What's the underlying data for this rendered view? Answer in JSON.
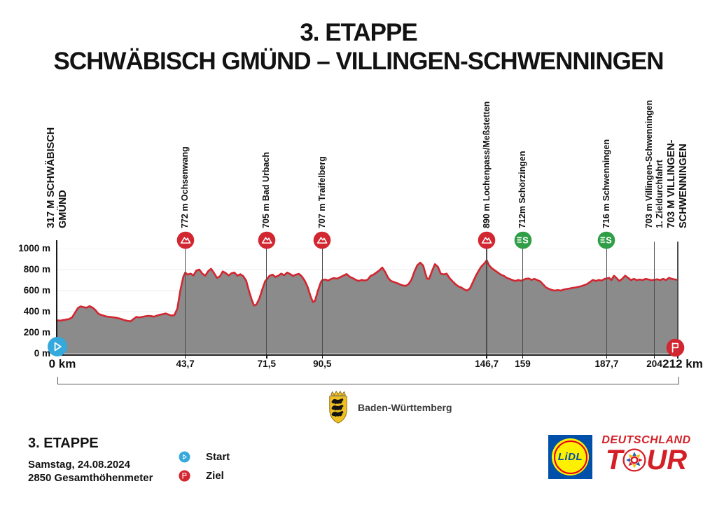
{
  "title": {
    "line1": "3. ETAPPE",
    "line2": "SCHWÄBISCH GMÜND – VILLINGEN-SCHWENNINGEN"
  },
  "chart_data": {
    "type": "area",
    "xlabel_unit": "km",
    "ylabel_unit": "m",
    "xlim": [
      0,
      212
    ],
    "ylim": [
      0,
      1000
    ],
    "grid": "horizontal-200m",
    "y_ticks": [
      {
        "m": 0,
        "label": "0 m"
      },
      {
        "m": 200,
        "label": "200 m"
      },
      {
        "m": 400,
        "label": "400 m"
      },
      {
        "m": 600,
        "label": "600 m"
      },
      {
        "m": 800,
        "label": "800 m"
      },
      {
        "m": 1000,
        "label": "1000 m"
      }
    ],
    "waypoints": [
      {
        "km": 0,
        "tick_label": "0 km",
        "tick_bold": true,
        "label_lines": [
          "317 M SCHWÄBISCH",
          "GMÜND"
        ],
        "label_bold": true,
        "marker": "start"
      },
      {
        "km": 43.7,
        "tick_label": "43,7",
        "tick_bold": false,
        "label_lines": [
          "772 m Ochsenwang"
        ],
        "label_bold": false,
        "marker": "climb"
      },
      {
        "km": 71.5,
        "tick_label": "71,5",
        "tick_bold": false,
        "label_lines": [
          "705 m Bad Urbach"
        ],
        "label_bold": false,
        "marker": "climb"
      },
      {
        "km": 90.5,
        "tick_label": "90,5",
        "tick_bold": false,
        "label_lines": [
          "707 m Traifelberg"
        ],
        "label_bold": false,
        "marker": "climb"
      },
      {
        "km": 146.7,
        "tick_label": "146,7",
        "tick_bold": false,
        "label_lines": [
          "890 m Lochenpass/Meßstetten"
        ],
        "label_bold": false,
        "marker": "climb"
      },
      {
        "km": 159,
        "tick_label": "159",
        "tick_bold": false,
        "label_lines": [
          "712m Schörzingen"
        ],
        "label_bold": false,
        "marker": "sprint"
      },
      {
        "km": 187.7,
        "tick_label": "187,7",
        "tick_bold": false,
        "label_lines": [
          "716 m Schwenningen"
        ],
        "label_bold": false,
        "marker": "sprint"
      },
      {
        "km": 204,
        "tick_label": "204",
        "tick_bold": false,
        "label_lines": [
          "703 m Villingen-Schwenningen",
          "1. Zieldurchfahrt"
        ],
        "label_bold": false,
        "marker": "none"
      },
      {
        "km": 212,
        "tick_label": "212 km",
        "tick_bold": true,
        "label_lines": [
          "703 M VILLINGEN-",
          "SCHWENNINGEN"
        ],
        "label_bold": true,
        "marker": "finish"
      }
    ],
    "profile_points": [
      [
        0,
        317
      ],
      [
        1,
        315
      ],
      [
        2,
        320
      ],
      [
        3,
        325
      ],
      [
        4,
        330
      ],
      [
        5,
        345
      ],
      [
        6,
        390
      ],
      [
        7,
        435
      ],
      [
        8,
        450
      ],
      [
        9,
        442
      ],
      [
        10,
        438
      ],
      [
        11,
        452
      ],
      [
        12,
        438
      ],
      [
        13,
        415
      ],
      [
        14,
        380
      ],
      [
        15,
        368
      ],
      [
        16,
        360
      ],
      [
        17,
        352
      ],
      [
        18,
        350
      ],
      [
        19,
        346
      ],
      [
        20,
        342
      ],
      [
        21,
        336
      ],
      [
        22,
        328
      ],
      [
        23,
        318
      ],
      [
        24,
        312
      ],
      [
        25,
        308
      ],
      [
        26,
        330
      ],
      [
        27,
        350
      ],
      [
        28,
        344
      ],
      [
        29,
        350
      ],
      [
        30,
        356
      ],
      [
        31,
        360
      ],
      [
        32,
        358
      ],
      [
        33,
        352
      ],
      [
        34,
        362
      ],
      [
        35,
        370
      ],
      [
        36,
        376
      ],
      [
        37,
        382
      ],
      [
        38,
        372
      ],
      [
        39,
        362
      ],
      [
        40,
        368
      ],
      [
        41,
        430
      ],
      [
        42,
        600
      ],
      [
        43,
        730
      ],
      [
        43.7,
        772
      ],
      [
        44.5,
        752
      ],
      [
        45.5,
        762
      ],
      [
        46.5,
        744
      ],
      [
        47.5,
        792
      ],
      [
        48.5,
        800
      ],
      [
        49.5,
        762
      ],
      [
        50.5,
        742
      ],
      [
        51.5,
        784
      ],
      [
        52.5,
        808
      ],
      [
        53.5,
        768
      ],
      [
        54.5,
        722
      ],
      [
        55.5,
        734
      ],
      [
        56.5,
        782
      ],
      [
        57.5,
        768
      ],
      [
        58.5,
        744
      ],
      [
        59.5,
        766
      ],
      [
        60.5,
        772
      ],
      [
        61.5,
        742
      ],
      [
        62.5,
        756
      ],
      [
        63.5,
        738
      ],
      [
        64.5,
        695
      ],
      [
        65.5,
        595
      ],
      [
        66.5,
        505
      ],
      [
        67.2,
        458
      ],
      [
        68,
        468
      ],
      [
        69,
        525
      ],
      [
        70,
        610
      ],
      [
        71,
        690
      ],
      [
        71.5,
        705
      ],
      [
        72.5,
        742
      ],
      [
        73.5,
        752
      ],
      [
        74.5,
        730
      ],
      [
        75.5,
        742
      ],
      [
        76.5,
        762
      ],
      [
        77.5,
        746
      ],
      [
        78.5,
        772
      ],
      [
        79.5,
        758
      ],
      [
        80.5,
        740
      ],
      [
        81.5,
        752
      ],
      [
        82.5,
        760
      ],
      [
        83.5,
        736
      ],
      [
        84.5,
        696
      ],
      [
        85.5,
        636
      ],
      [
        86.5,
        548
      ],
      [
        87.3,
        492
      ],
      [
        88,
        502
      ],
      [
        89,
        598
      ],
      [
        90,
        678
      ],
      [
        90.5,
        700
      ],
      [
        91.5,
        706
      ],
      [
        92.5,
        696
      ],
      [
        93.5,
        710
      ],
      [
        94.5,
        720
      ],
      [
        95.5,
        714
      ],
      [
        96.5,
        726
      ],
      [
        97.5,
        740
      ],
      [
        98.8,
        758
      ],
      [
        100,
        730
      ],
      [
        101,
        718
      ],
      [
        102,
        702
      ],
      [
        103,
        692
      ],
      [
        104,
        702
      ],
      [
        105,
        696
      ],
      [
        106,
        704
      ],
      [
        107,
        740
      ],
      [
        108,
        752
      ],
      [
        109,
        772
      ],
      [
        110,
        792
      ],
      [
        111,
        820
      ],
      [
        112,
        778
      ],
      [
        113,
        722
      ],
      [
        114,
        692
      ],
      [
        115,
        682
      ],
      [
        116,
        672
      ],
      [
        117,
        660
      ],
      [
        118,
        650
      ],
      [
        119,
        645
      ],
      [
        120,
        662
      ],
      [
        121,
        705
      ],
      [
        122,
        782
      ],
      [
        123,
        842
      ],
      [
        124,
        866
      ],
      [
        125,
        838
      ],
      [
        125.8,
        760
      ],
      [
        126.3,
        715
      ],
      [
        127,
        712
      ],
      [
        128,
        785
      ],
      [
        129,
        852
      ],
      [
        130,
        828
      ],
      [
        131,
        762
      ],
      [
        132,
        754
      ],
      [
        133,
        762
      ],
      [
        134,
        720
      ],
      [
        135,
        690
      ],
      [
        136,
        662
      ],
      [
        137,
        640
      ],
      [
        138,
        630
      ],
      [
        139,
        612
      ],
      [
        140,
        600
      ],
      [
        141,
        622
      ],
      [
        142,
        682
      ],
      [
        143,
        742
      ],
      [
        144,
        792
      ],
      [
        145,
        835
      ],
      [
        146,
        862
      ],
      [
        146.7,
        890
      ],
      [
        147.5,
        842
      ],
      [
        148.5,
        812
      ],
      [
        149.5,
        792
      ],
      [
        150.5,
        772
      ],
      [
        151.5,
        752
      ],
      [
        152.5,
        742
      ],
      [
        153.5,
        722
      ],
      [
        154.5,
        712
      ],
      [
        155.5,
        700
      ],
      [
        156.5,
        692
      ],
      [
        157.5,
        702
      ],
      [
        158.3,
        694
      ],
      [
        159,
        700
      ],
      [
        160,
        712
      ],
      [
        161,
        716
      ],
      [
        162,
        702
      ],
      [
        163,
        712
      ],
      [
        164,
        700
      ],
      [
        165,
        688
      ],
      [
        166,
        658
      ],
      [
        167,
        630
      ],
      [
        168,
        616
      ],
      [
        169,
        606
      ],
      [
        170,
        600
      ],
      [
        171,
        606
      ],
      [
        172,
        600
      ],
      [
        173,
        610
      ],
      [
        174,
        616
      ],
      [
        175,
        620
      ],
      [
        176,
        626
      ],
      [
        177,
        630
      ],
      [
        178,
        636
      ],
      [
        179,
        642
      ],
      [
        180,
        652
      ],
      [
        181,
        662
      ],
      [
        182,
        682
      ],
      [
        183,
        702
      ],
      [
        184,
        692
      ],
      [
        185,
        702
      ],
      [
        186,
        696
      ],
      [
        187,
        712
      ],
      [
        187.7,
        716
      ],
      [
        188.5,
        722
      ],
      [
        189.3,
        700
      ],
      [
        190.2,
        742
      ],
      [
        191,
        722
      ],
      [
        192,
        692
      ],
      [
        193,
        712
      ],
      [
        194,
        742
      ],
      [
        195,
        722
      ],
      [
        196,
        700
      ],
      [
        197,
        712
      ],
      [
        198,
        700
      ],
      [
        199,
        706
      ],
      [
        200,
        700
      ],
      [
        201,
        712
      ],
      [
        202,
        706
      ],
      [
        203,
        700
      ],
      [
        204,
        703
      ],
      [
        205,
        708
      ],
      [
        206,
        700
      ],
      [
        207,
        712
      ],
      [
        208,
        700
      ],
      [
        209,
        722
      ],
      [
        210,
        712
      ],
      [
        211,
        706
      ],
      [
        212,
        703
      ]
    ],
    "colors": {
      "profile_line": "#d22630",
      "profile_fill": "#8b8b8b",
      "climb_marker": "#d22630",
      "sprint_marker": "#2f9e47",
      "start_marker": "#35a8dc",
      "finish_marker": "#d22630",
      "gridline": "#ececec"
    }
  },
  "region_badge": {
    "label": "Baden-Württemberg"
  },
  "stage_info": {
    "title": "3. ETAPPE",
    "date": "Samstag, 24.08.2024",
    "elevation_gain": "2850 Gesamthöhenmeter"
  },
  "legend": {
    "start_label": "Start",
    "finish_label": "Ziel"
  },
  "logos": {
    "lidl_text": "LiDL",
    "tour_line1": "DEUTSCHLAND",
    "tour_t": "T",
    "tour_ur": "UR"
  }
}
